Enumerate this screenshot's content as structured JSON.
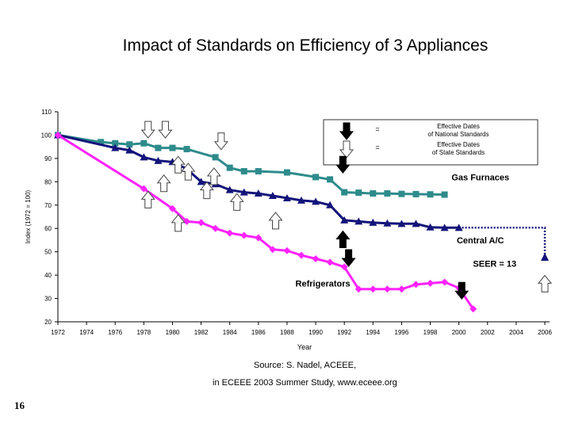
{
  "page": {
    "source_line1": "Source: S. Nadel, ACEEE,",
    "source_line2": "in ECEEE 2003 Summer Study, www.eceee.org",
    "page_number": "16"
  },
  "chart_data": {
    "type": "line",
    "title": "Impact of Standards on Efficiency of 3 Appliances",
    "xlabel": "Year",
    "ylabel": "Index (1972 = 100)",
    "xlim": [
      1972,
      2006
    ],
    "ylim": [
      20,
      110
    ],
    "xticks": [
      1972,
      1974,
      1976,
      1978,
      1980,
      1982,
      1984,
      1986,
      1988,
      1990,
      1992,
      1994,
      1996,
      1998,
      2000,
      2002,
      2004,
      2006
    ],
    "yticks": [
      20,
      30,
      40,
      50,
      60,
      70,
      80,
      90,
      100,
      110
    ],
    "grid": false,
    "legend": {
      "position": "top-right",
      "entries": [
        {
          "symbol": "black-down-arrow-icon",
          "sep": "=",
          "label": "Effective Dates of National Standards"
        },
        {
          "symbol": "white-down-arrow-icon",
          "sep": "=",
          "label": "Effective Dates of State Standards"
        }
      ]
    },
    "series": [
      {
        "name": "Gas Furnaces",
        "color": "#2e8b8b",
        "marker": "square",
        "x": [
          1972,
          1975,
          1976,
          1977,
          1978,
          1979,
          1980,
          1981,
          1983,
          1984,
          1985,
          1986,
          1988,
          1990,
          1991,
          1992,
          1993,
          1994,
          1995,
          1996,
          1997,
          1998,
          1999
        ],
        "values": [
          100,
          97,
          96.5,
          96,
          96.5,
          94.5,
          94.5,
          94,
          90.5,
          86,
          84.5,
          84.5,
          84,
          82,
          81,
          75.5,
          75.3,
          75,
          75,
          74.8,
          74.7,
          74.6,
          74.5
        ]
      },
      {
        "name": "Central A/C",
        "color": "#13137a",
        "marker": "triangle",
        "x": [
          1972,
          1976,
          1977,
          1978,
          1979,
          1980,
          1981,
          1982,
          1983,
          1984,
          1985,
          1986,
          1987,
          1988,
          1989,
          1990,
          1991,
          1992,
          1993,
          1994,
          1995,
          1996,
          1997,
          1998,
          1999,
          2000
        ],
        "values": [
          100,
          94.5,
          93.5,
          90.5,
          89,
          88.5,
          85.5,
          80,
          79,
          76.5,
          75.5,
          75,
          74,
          73,
          72,
          71.5,
          70,
          63.5,
          63,
          62.5,
          62.2,
          62,
          62,
          60.5,
          60.3,
          60.3
        ]
      },
      {
        "name": "Refrigerators",
        "color": "#ff22ff",
        "marker": "diamond",
        "x": [
          1972,
          1978,
          1980,
          1981,
          1982,
          1983,
          1984,
          1985,
          1986,
          1987,
          1988,
          1989,
          1990,
          1991,
          1992,
          1993,
          1994,
          1995,
          1996,
          1997,
          1998,
          1999,
          2000,
          2001
        ],
        "values": [
          100,
          77,
          68.5,
          63,
          62.5,
          60,
          58,
          57,
          56,
          51,
          50.5,
          48.5,
          47,
          45.5,
          43.5,
          34,
          34,
          34,
          34,
          36,
          36.5,
          37,
          34.5,
          25.5
        ]
      }
    ],
    "annotations": [
      {
        "text": "Gas Furnaces",
        "x": 2001.5,
        "y": 82
      },
      {
        "text": "Central A/C",
        "x": 2001.5,
        "y": 55
      },
      {
        "text": "SEER = 13",
        "x": 2002.5,
        "y": 45
      },
      {
        "text": "Refrigerators",
        "x": 1990.5,
        "y": 36.5
      }
    ],
    "projection": {
      "name": "SEER = 13",
      "x": [
        2000,
        2006,
        2006
      ],
      "values": [
        60.3,
        60.3,
        47.5
      ]
    },
    "markers": [
      {
        "kind": "state",
        "x": 1978.3,
        "y": 102.5
      },
      {
        "kind": "state",
        "x": 1979.5,
        "y": 102.5
      },
      {
        "kind": "state",
        "x": 1983.4,
        "y": 97.5
      },
      {
        "kind": "state",
        "x": 1980.4,
        "y": 87.5
      },
      {
        "kind": "state",
        "x": 1981.1,
        "y": 84.5
      },
      {
        "kind": "state",
        "x": 1982.9,
        "y": 82.5
      },
      {
        "kind": "state",
        "x": 1979.4,
        "y": 79.5
      },
      {
        "kind": "state",
        "x": 1982.4,
        "y": 76.5
      },
      {
        "kind": "state",
        "x": 1978.3,
        "y": 72.5
      },
      {
        "kind": "state",
        "x": 1984.5,
        "y": 71.5
      },
      {
        "kind": "state",
        "x": 1980.4,
        "y": 62.5
      },
      {
        "kind": "state",
        "x": 1987.2,
        "y": 63.5
      },
      {
        "kind": "national",
        "x": 1991.9,
        "y": 87.5
      },
      {
        "kind": "national",
        "x": 1991.9,
        "y": 55.5
      },
      {
        "kind": "national",
        "x": 1992.3,
        "y": 47.5
      },
      {
        "kind": "national",
        "x": 2000.2,
        "y": 33.5
      },
      {
        "kind": "state",
        "x": 2006.0,
        "y": 36.5
      }
    ]
  }
}
